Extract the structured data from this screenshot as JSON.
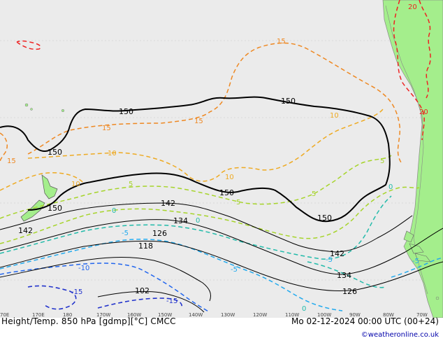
{
  "map": {
    "title": "Height/Temp. 850 hPa [gdmp][°C] CMCC",
    "date": "Mo 02-12-2024 00:00 UTC (00+24)",
    "credit": "©weatheronline.co.uk",
    "longitude_labels": [
      "70E",
      "170E",
      "180",
      "170W",
      "160W",
      "150W",
      "140W",
      "130W",
      "120W",
      "110W",
      "100W",
      "90W",
      "80W",
      "70W"
    ],
    "height_contour_labels": [
      "150",
      "150",
      "150",
      "150",
      "150",
      "150",
      "142",
      "142",
      "142",
      "134",
      "134",
      "126",
      "126",
      "118",
      "102"
    ],
    "temp_contour_labels": [
      "20",
      "20",
      "15",
      "15",
      "15",
      "15",
      "10",
      "10",
      "10",
      "10",
      "5",
      "5",
      "5",
      "5",
      "0",
      "0",
      "0",
      "0",
      "-5",
      "-5",
      "-5",
      "-5",
      "-10",
      "-15",
      "-15"
    ],
    "colors": {
      "ocean": "#ebebeb",
      "land": "#a4ee8c",
      "land_border": "#888888",
      "height_contour": "#000000",
      "temp_20": "#ee2222",
      "temp_15": "#ee8822",
      "temp_10": "#eeaa22",
      "temp_5": "#a6d42a",
      "temp_0": "#22bbaa",
      "temp_m5": "#22aaee",
      "temp_m10": "#2266ee",
      "temp_m15": "#2233cc"
    }
  }
}
